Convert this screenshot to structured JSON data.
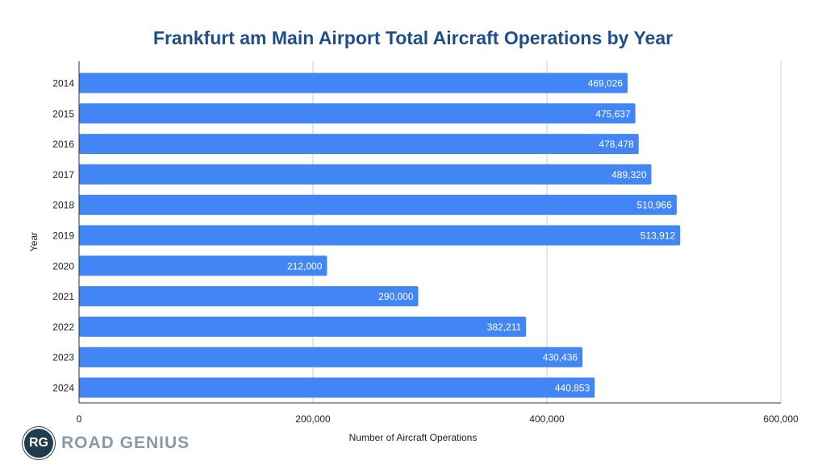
{
  "chart_data": {
    "type": "bar",
    "orientation": "horizontal",
    "title": "Frankfurt am Main Airport Total Aircraft Operations by Year",
    "xlabel": "Number of Aircraft Operations",
    "ylabel": "Year",
    "categories": [
      "2014",
      "2015",
      "2016",
      "2017",
      "2018",
      "2019",
      "2020",
      "2021",
      "2022",
      "2023",
      "2024"
    ],
    "values": [
      469026,
      475637,
      478478,
      489320,
      510966,
      513912,
      212000,
      290000,
      382211,
      430436,
      440853
    ],
    "data_labels": [
      "469,026",
      "475,637",
      "478,478",
      "489,320",
      "510,966",
      "513,912",
      "212,000",
      "290,000",
      "382,211",
      "430,436",
      "440,853"
    ],
    "xlim": [
      0,
      600000
    ],
    "xticks": [
      0,
      200000,
      400000,
      600000
    ],
    "xtick_labels": [
      "0",
      "200,000",
      "400,000",
      "600,000"
    ],
    "grid": true,
    "bar_color": "#4285f4"
  },
  "logo": {
    "mark": "RG",
    "text": "ROAD GENIUS"
  }
}
